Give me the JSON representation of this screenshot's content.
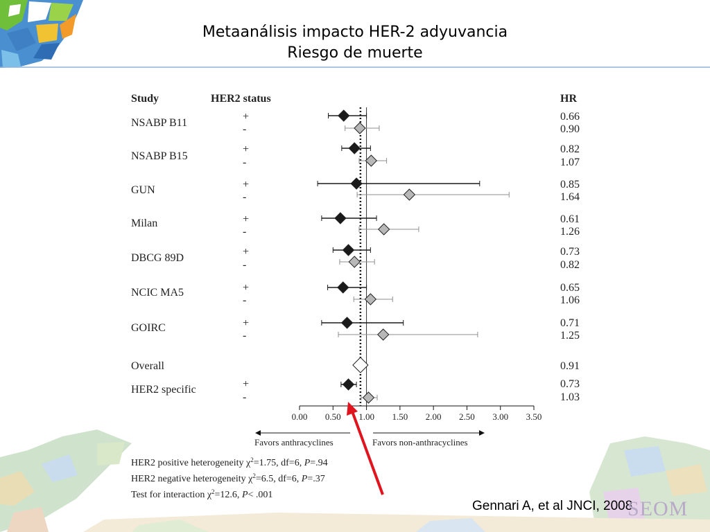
{
  "slide": {
    "title_line1": "Metaanálisis impacto HER-2 adyuvancia",
    "title_line2": "Riesgo de muerte",
    "citation": "Gennari A, et al JNCI, 2008",
    "logo_text": "SEOM"
  },
  "chart_data": {
    "type": "forest",
    "columns": {
      "study": "Study",
      "status": "HER2 status",
      "hr": "HR"
    },
    "rows": [
      {
        "study": "NSABP B11",
        "status": "+",
        "hr": 0.66,
        "hr_label": "0.66",
        "lo": 0.43,
        "hi": 1.0,
        "kind": "pos"
      },
      {
        "study": "",
        "status": "-",
        "hr": 0.9,
        "hr_label": "0.90",
        "lo": 0.68,
        "hi": 1.19,
        "kind": "neg"
      },
      {
        "study": "NSABP B15",
        "status": "+",
        "hr": 0.82,
        "hr_label": "0.82",
        "lo": 0.63,
        "hi": 1.06,
        "kind": "pos"
      },
      {
        "study": "",
        "status": "-",
        "hr": 1.07,
        "hr_label": "1.07",
        "lo": 0.89,
        "hi": 1.3,
        "kind": "neg"
      },
      {
        "study": "GUN",
        "status": "+",
        "hr": 0.85,
        "hr_label": "0.85",
        "lo": 0.27,
        "hi": 2.69,
        "kind": "pos"
      },
      {
        "study": "",
        "status": "-",
        "hr": 1.64,
        "hr_label": "1.64",
        "lo": 0.86,
        "hi": 3.13,
        "kind": "neg"
      },
      {
        "study": "Milan",
        "status": "+",
        "hr": 0.61,
        "hr_label": "0.61",
        "lo": 0.33,
        "hi": 1.15,
        "kind": "pos"
      },
      {
        "study": "",
        "status": "-",
        "hr": 1.26,
        "hr_label": "1.26",
        "lo": 0.89,
        "hi": 1.78,
        "kind": "neg"
      },
      {
        "study": "DBCG 89D",
        "status": "+",
        "hr": 0.73,
        "hr_label": "0.73",
        "lo": 0.5,
        "hi": 1.06,
        "kind": "pos"
      },
      {
        "study": "",
        "status": "-",
        "hr": 0.82,
        "hr_label": "0.82",
        "lo": 0.6,
        "hi": 1.12,
        "kind": "neg"
      },
      {
        "study": "NCIC MA5",
        "status": "+",
        "hr": 0.65,
        "hr_label": "0.65",
        "lo": 0.42,
        "hi": 1.0,
        "kind": "pos"
      },
      {
        "study": "",
        "status": "-",
        "hr": 1.06,
        "hr_label": "1.06",
        "lo": 0.81,
        "hi": 1.39,
        "kind": "neg"
      },
      {
        "study": "GOIRC",
        "status": "+",
        "hr": 0.71,
        "hr_label": "0.71",
        "lo": 0.33,
        "hi": 1.55,
        "kind": "pos"
      },
      {
        "study": "",
        "status": "-",
        "hr": 1.25,
        "hr_label": "1.25",
        "lo": 0.58,
        "hi": 2.66,
        "kind": "neg"
      },
      {
        "study": "Overall",
        "status": "",
        "hr": 0.91,
        "hr_label": "0.91",
        "lo": 0.8,
        "hi": 1.03,
        "kind": "overall"
      },
      {
        "study": "HER2 specific",
        "status": "+",
        "hr": 0.73,
        "hr_label": "0.73",
        "lo": 0.62,
        "hi": 0.85,
        "kind": "pos"
      },
      {
        "study": "",
        "status": "-",
        "hr": 1.03,
        "hr_label": "1.03",
        "lo": 0.92,
        "hi": 1.16,
        "kind": "neg"
      }
    ],
    "x_ticks": [
      "0.00",
      "0.50",
      "1.00",
      "1.50",
      "2.00",
      "2.50",
      "3.00",
      "3.50"
    ],
    "xlim": [
      0,
      3.5
    ],
    "reference_line": 0.91,
    "null_line": 1.0,
    "favors_left": "Favors anthracyclines",
    "favors_right": "Favors non-anthracyclines",
    "footnotes": [
      {
        "pre": "HER2 positive  heterogeneity ",
        "chi": "χ",
        "sup": "2",
        "post": "=1.75, df=6, ",
        "p": "P",
        "tail": "=.94"
      },
      {
        "pre": "HER2 negative  heterogeneity ",
        "chi": "χ",
        "sup": "2",
        "post": "=6.5, df=6, ",
        "p": "P",
        "tail": "=.37"
      },
      {
        "pre": "Test for interaction ",
        "chi": "χ",
        "sup": "2",
        "post": "=12.6, ",
        "p": "P",
        "tail": "< .001"
      }
    ],
    "colors": {
      "positive": "#1a1a1a",
      "negative": "#b8b8b8",
      "overall": "#ffffff",
      "arrow": "#e0141e"
    }
  }
}
